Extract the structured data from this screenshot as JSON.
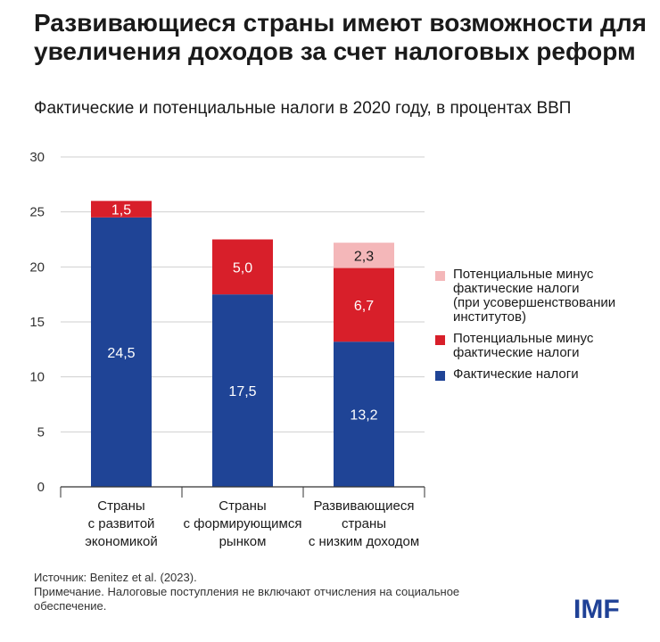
{
  "title": "Развивающиеся страны имеют возможности для увеличения доходов за счет налоговых реформ",
  "subtitle": "Фактические и потенциальные налоги в 2020 году, в процентах ВВП",
  "chart_data": {
    "type": "bar",
    "stacked": true,
    "title": "Развивающиеся страны имеют возможности для увеличения доходов за счет налоговых реформ",
    "subtitle": "Фактические и потенциальные налоги в 2020 году, в процентах ВВП",
    "categories": [
      "Страны\nс развитой\nэкономикой",
      "Страны\nс формирующимся\nрынком",
      "Развивающиеся\nстраны\nс низким доходом"
    ],
    "series": [
      {
        "name": "Фактические налоги",
        "color": "#1f4496",
        "values": [
          24.5,
          17.5,
          13.2
        ],
        "labels": [
          "24,5",
          "17,5",
          "13,2"
        ]
      },
      {
        "name": "Потенциальные минус\nфактические налоги",
        "color": "#d81f2a",
        "values": [
          1.5,
          5.0,
          6.7
        ],
        "labels": [
          "1,5",
          "5,0",
          "6,7"
        ]
      },
      {
        "name": "Потенциальные минус\nфактические налоги\n(при усовершенствовании\nинститутов)",
        "color": "#f4b7b9",
        "values": [
          0,
          0,
          2.3
        ],
        "labels": [
          "",
          "",
          "2,3"
        ]
      }
    ],
    "yticks": [
      0,
      5,
      10,
      15,
      20,
      25,
      30
    ],
    "ylim": [
      0,
      30
    ],
    "grid": true,
    "legend_position": "right"
  },
  "legend": [
    {
      "label": "Потенциальные минус\nфактические налоги\n(при усовершенствовании\nинститутов)",
      "color": "#f4b7b9"
    },
    {
      "label": "Потенциальные минус\nфактические налоги",
      "color": "#d81f2a"
    },
    {
      "label": "Фактические налоги",
      "color": "#1f4496"
    }
  ],
  "footer": {
    "source": "Источник: Benitez et al. (2023).",
    "note": "Примечание. Налоговые поступления не включают отчисления на социальное обеспечение."
  },
  "logo": "IMF"
}
